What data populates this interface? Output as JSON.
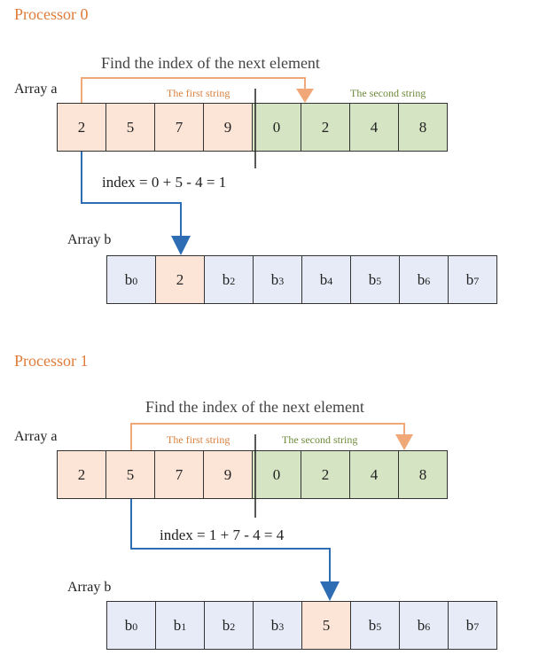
{
  "panels": [
    {
      "title": "Processor 0",
      "caption": "Find the index of the next element",
      "array_a_label": "Array a",
      "first_string_label": "The first string",
      "second_string_label": "The second string",
      "array_a": [
        "2",
        "5",
        "7",
        "9",
        "0",
        "2",
        "4",
        "8"
      ],
      "index_equation": "index = 0 + 5 - 4 = 1",
      "array_b_label": "Array b",
      "array_b": [
        {
          "base": "b",
          "sub": "0"
        },
        {
          "base": "2",
          "sub": ""
        },
        {
          "base": "b",
          "sub": "2"
        },
        {
          "base": "b",
          "sub": "3"
        },
        {
          "base": "b",
          "sub": "4"
        },
        {
          "base": "b",
          "sub": "5"
        },
        {
          "base": "b",
          "sub": "6"
        },
        {
          "base": "b",
          "sub": "7"
        }
      ]
    },
    {
      "title": "Processor 1",
      "caption": "Find the index of the next element",
      "array_a_label": "Array a",
      "first_string_label": "The first string",
      "second_string_label": "The second string",
      "array_a": [
        "2",
        "5",
        "7",
        "9",
        "0",
        "2",
        "4",
        "8"
      ],
      "index_equation": "index = 1 + 7 - 4 = 4",
      "array_b_label": "Array b",
      "array_b": [
        {
          "base": "b",
          "sub": "0"
        },
        {
          "base": "b",
          "sub": "1"
        },
        {
          "base": "b",
          "sub": "2"
        },
        {
          "base": "b",
          "sub": "3"
        },
        {
          "base": "5",
          "sub": ""
        },
        {
          "base": "b",
          "sub": "5"
        },
        {
          "base": "b",
          "sub": "6"
        },
        {
          "base": "b",
          "sub": "7"
        }
      ]
    }
  ],
  "colors": {
    "title": "#e07b39",
    "first_string_fill": "#fce4d6",
    "second_string_fill": "#d5e4c3",
    "array_b_fill": "#e6ebf7",
    "orange_arrow": "#f0a878",
    "blue_arrow": "#2e6db4"
  }
}
